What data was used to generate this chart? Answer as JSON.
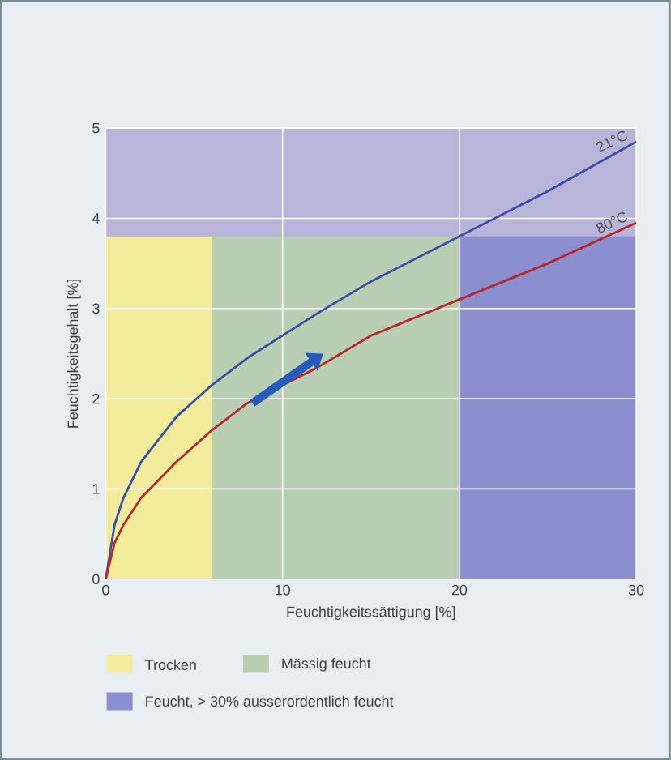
{
  "chart_data": {
    "type": "line",
    "xlabel": "Feuchtigkeitssättigung [%]",
    "ylabel": "Feuchtigkeitsgehalt [%]",
    "xlim": [
      0,
      30
    ],
    "ylim": [
      0,
      5
    ],
    "xticks": [
      0,
      10,
      20,
      30
    ],
    "yticks": [
      0,
      1,
      2,
      3,
      4,
      5
    ],
    "grid": true,
    "legend": "bottom",
    "series": [
      {
        "name": "21°C",
        "color": "#3a4fa8",
        "x": [
          0,
          0.5,
          1,
          2,
          4,
          6,
          8,
          10,
          12,
          15,
          20,
          25,
          30
        ],
        "values": [
          0,
          0.6,
          0.9,
          1.3,
          1.8,
          2.15,
          2.45,
          2.7,
          2.95,
          3.3,
          3.8,
          4.3,
          4.85
        ]
      },
      {
        "name": "80°C",
        "color": "#b8282a",
        "x": [
          0,
          0.5,
          1,
          2,
          4,
          6,
          8,
          10,
          12,
          15,
          20,
          25,
          30
        ],
        "values": [
          0,
          0.4,
          0.6,
          0.9,
          1.3,
          1.65,
          1.95,
          2.15,
          2.35,
          2.7,
          3.1,
          3.5,
          3.95
        ]
      }
    ],
    "bands": [
      {
        "axis": "x",
        "from": 0,
        "to": 6,
        "color": "#f3ec9a",
        "label": "Trocken"
      },
      {
        "axis": "x",
        "from": 6,
        "to": 20,
        "color": "#b9cfb4",
        "label": "Mässig feucht"
      },
      {
        "axis": "x",
        "from": 20,
        "to": 30,
        "color": "#8b8fcf",
        "label": "Feucht, > 30% ausserordentlich feucht"
      },
      {
        "axis": "y",
        "from": 3.8,
        "to": 5,
        "color": "#b9b5da"
      }
    ]
  }
}
